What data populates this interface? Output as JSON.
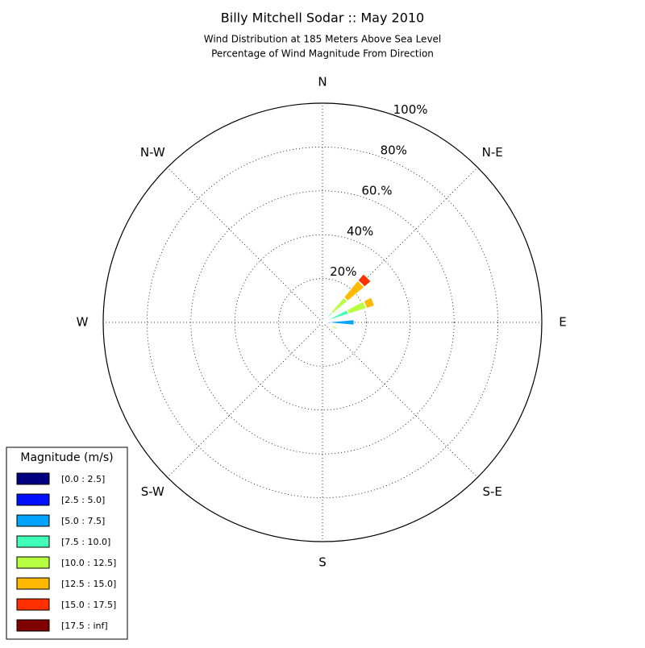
{
  "chart_data": {
    "type": "windrose",
    "title": "Billy Mitchell Sodar :: May 2010",
    "subtitle": [
      "Wind Distribution at 185 Meters Above Sea Level",
      "Percentage of Wind Magnitude From Direction"
    ],
    "angle_labels": [
      "N",
      "N-E",
      "E",
      "S-E",
      "S",
      "S-W",
      "W",
      "N-W"
    ],
    "x": [
      45,
      67.5,
      90,
      112.5
    ],
    "rlim": [
      0,
      100
    ],
    "rticks": [
      {
        "value": 20,
        "label": "20%"
      },
      {
        "value": 40,
        "label": "40%"
      },
      {
        "value": 60,
        "label": "60.%"
      },
      {
        "value": 80,
        "label": "80%"
      },
      {
        "value": 100,
        "label": "100%"
      }
    ],
    "grid": true,
    "legend_title": "Magnitude (m/s)",
    "legend_position": "lower left",
    "series": [
      {
        "name": "[0.0 : 2.5]",
        "color": "#000080",
        "values": [
          0.5,
          1,
          2,
          0
        ]
      },
      {
        "name": "[2.5 : 5.0]",
        "color": "#0010ff",
        "values": [
          0.5,
          1,
          2,
          0.5
        ]
      },
      {
        "name": "[5.0 : 7.5]",
        "color": "#00a4ff",
        "values": [
          0.5,
          2,
          10.5,
          3
        ]
      },
      {
        "name": "[7.5 : 10.0]",
        "color": "#40ffb7",
        "values": [
          4.5,
          8.5,
          0,
          1
        ]
      },
      {
        "name": "[10.0 : 12.5]",
        "color": "#b7ff40",
        "values": [
          9,
          8.5,
          0,
          2.5
        ]
      },
      {
        "name": "[12.5 : 15.0]",
        "color": "#ffb900",
        "values": [
          10,
          4,
          0,
          0
        ]
      },
      {
        "name": "[15.0 : 17.5]",
        "color": "#ff3000",
        "values": [
          4,
          0,
          0,
          0
        ]
      },
      {
        "name": "[17.5 : inf]",
        "color": "#800000",
        "values": [
          0,
          0,
          0,
          0
        ]
      }
    ]
  }
}
